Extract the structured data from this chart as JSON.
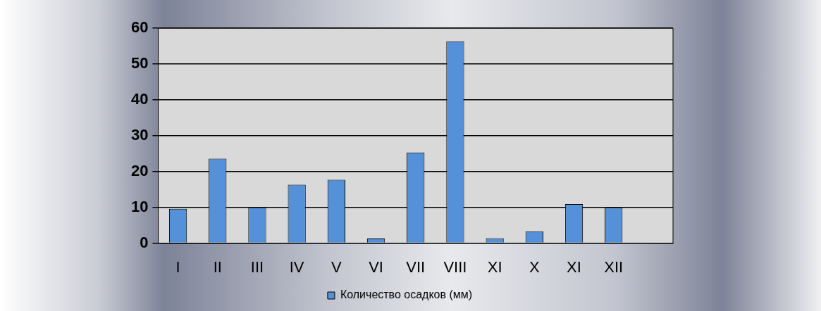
{
  "chart_data": {
    "type": "bar",
    "categories": [
      "I",
      "II",
      "III",
      "IV",
      "V",
      "VI",
      "VII",
      "VIII",
      "XI",
      "X",
      "XI",
      "XII",
      null
    ],
    "series": [
      {
        "name": "Количество осадков (мм)",
        "color": "#5591d8",
        "values": [
          9.6,
          23.6,
          10.0,
          16.3,
          17.7,
          1.3,
          25.3,
          56.3,
          1.4,
          3.3,
          10.9,
          9.9,
          null
        ]
      }
    ],
    "ylim": [
      0,
      60
    ],
    "yticks": [
      0,
      10,
      20,
      30,
      40,
      50,
      60
    ],
    "grid": "y",
    "legend": "bottom"
  }
}
